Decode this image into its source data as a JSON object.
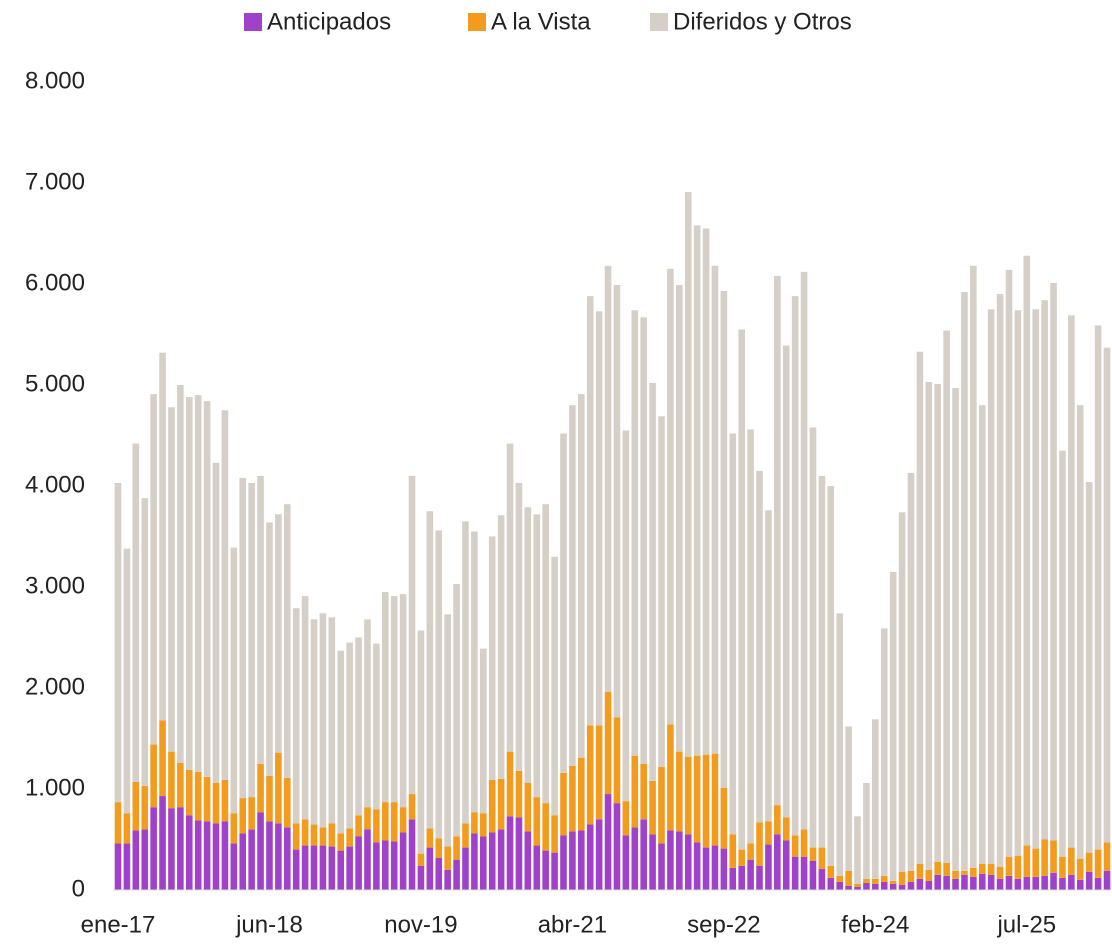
{
  "chart_data": {
    "type": "stacked_bar",
    "categories": [
      "ene-17",
      null,
      null,
      null,
      null,
      null,
      null,
      null,
      null,
      null,
      null,
      null,
      null,
      null,
      null,
      null,
      null,
      "jun-18",
      null,
      null,
      null,
      null,
      null,
      null,
      null,
      null,
      null,
      null,
      null,
      null,
      null,
      null,
      null,
      null,
      "nov-19",
      null,
      null,
      null,
      null,
      null,
      null,
      null,
      null,
      null,
      null,
      null,
      null,
      null,
      null,
      null,
      null,
      "abr-21",
      null,
      null,
      null,
      null,
      null,
      null,
      null,
      null,
      null,
      null,
      null,
      null,
      null,
      null,
      null,
      null,
      "sep-22",
      null,
      null,
      null,
      null,
      null,
      null,
      null,
      null,
      null,
      null,
      null,
      null,
      null,
      null,
      null,
      null,
      "feb-24",
      null,
      null,
      null,
      null,
      null,
      null,
      null,
      null,
      null,
      null,
      null,
      null,
      null,
      null,
      null,
      null,
      "jul-25",
      null,
      null,
      null,
      null,
      null,
      null,
      null,
      null,
      null
    ],
    "series": [
      {
        "name": "Anticipados",
        "color": "#a041c9",
        "values": [
          460,
          460,
          590,
          600,
          820,
          930,
          810,
          820,
          740,
          690,
          680,
          660,
          680,
          460,
          560,
          600,
          770,
          680,
          660,
          620,
          400,
          440,
          440,
          440,
          430,
          390,
          430,
          530,
          600,
          470,
          490,
          480,
          570,
          700,
          240,
          420,
          320,
          200,
          300,
          420,
          560,
          530,
          570,
          600,
          730,
          720,
          580,
          440,
          390,
          370,
          540,
          580,
          590,
          650,
          700,
          950,
          860,
          540,
          620,
          700,
          550,
          460,
          590,
          580,
          550,
          470,
          420,
          440,
          410,
          220,
          240,
          300,
          240,
          450,
          550,
          490,
          330,
          330,
          290,
          210,
          120,
          80,
          40,
          30,
          70,
          60,
          80,
          60,
          50,
          80,
          110,
          90,
          150,
          140,
          110,
          150,
          130,
          160,
          150,
          110,
          140,
          110,
          130,
          130,
          140,
          170,
          120,
          150,
          100,
          180,
          120,
          190
        ]
      },
      {
        "name": "A la Vista",
        "color": "#f39b1e",
        "values": [
          410,
          300,
          480,
          430,
          620,
          750,
          560,
          440,
          450,
          480,
          440,
          400,
          410,
          300,
          350,
          320,
          480,
          450,
          700,
          490,
          260,
          260,
          210,
          180,
          230,
          170,
          180,
          210,
          220,
          330,
          380,
          390,
          250,
          250,
          120,
          190,
          190,
          230,
          230,
          240,
          210,
          230,
          520,
          500,
          640,
          460,
          480,
          480,
          470,
          370,
          620,
          650,
          720,
          980,
          930,
          1010,
          850,
          340,
          710,
          550,
          530,
          760,
          1050,
          790,
          770,
          860,
          920,
          910,
          600,
          330,
          160,
          160,
          430,
          230,
          290,
          230,
          210,
          270,
          130,
          210,
          120,
          60,
          150,
          30,
          40,
          50,
          60,
          30,
          130,
          110,
          150,
          110,
          130,
          130,
          80,
          40,
          90,
          100,
          110,
          120,
          190,
          230,
          310,
          280,
          360,
          320,
          210,
          270,
          210,
          190,
          280,
          280
        ]
      },
      {
        "name": "Diferidos y Otros",
        "color": "#d6cfc7",
        "values": [
          3160,
          2620,
          3350,
          2850,
          3470,
          3640,
          3410,
          3740,
          3690,
          3730,
          3720,
          3170,
          3660,
          2630,
          3170,
          3110,
          2850,
          2510,
          2360,
          2710,
          2130,
          2210,
          2030,
          2120,
          2040,
          1810,
          1840,
          1760,
          1860,
          1640,
          2080,
          2040,
          2110,
          3150,
          2210,
          3140,
          3050,
          2300,
          2500,
          2990,
          2780,
          1630,
          2410,
          2610,
          3050,
          2850,
          2730,
          2800,
          2960,
          2560,
          3360,
          3570,
          3600,
          4250,
          4100,
          4220,
          4280,
          3670,
          4410,
          4420,
          3940,
          3470,
          4510,
          4620,
          5590,
          5250,
          5210,
          4830,
          4920,
          3970,
          5150,
          4100,
          3480,
          3080,
          5240,
          4670,
          5340,
          5520,
          4160,
          3680,
          3760,
          2600,
          1430,
          670,
          950,
          1580,
          2450,
          3060,
          3560,
          3940,
          5070,
          4830,
          4730,
          5270,
          4780,
          5730,
          5960,
          4540,
          5490,
          5670,
          5810,
          5400,
          5840,
          5340,
          5340,
          5520,
          4020,
          5270,
          4490,
          3670,
          5190,
          4900
        ]
      }
    ],
    "ylim": [
      0,
      8000
    ],
    "yticks": [
      0,
      {
        "value": 1000,
        "label": "1.000"
      },
      {
        "value": 2000,
        "label": "2.000"
      },
      {
        "value": 3000,
        "label": "3.000"
      },
      {
        "value": 4000,
        "label": "4.000"
      },
      {
        "value": 5000,
        "label": "5.000"
      },
      {
        "value": 6000,
        "label": "6.000"
      },
      {
        "value": 7000,
        "label": "7.000"
      },
      {
        "value": 8000,
        "label": "8.000"
      }
    ],
    "grid": false,
    "legend": "top"
  }
}
